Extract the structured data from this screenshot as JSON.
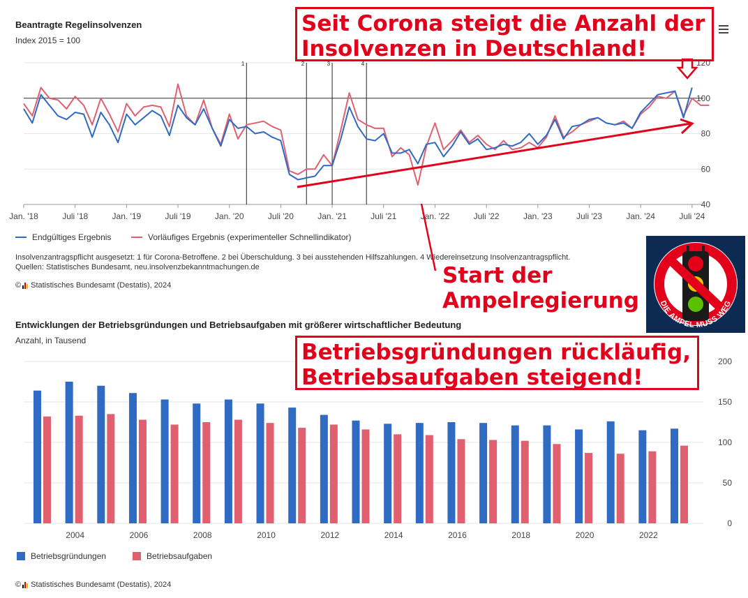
{
  "chart1": {
    "title": "Beantragte Regelinsolvenzen",
    "subtitle": "Index 2015 = 100",
    "legend": [
      "Endgültiges Ergebnis",
      "Vorläufiges Ergebnis (experimenteller Schnellindikator)"
    ],
    "footnote1": "Insolvenzantragspflicht ausgesetzt: 1 für Corona-Betroffene. 2 bei Überschuldung. 3 bei ausstehenden Hilfszahlungen. 4 Wiedereinsetzung Insolvenzantragspflicht.",
    "footnote2": "Quellen: Statistisches Bundesamt, neu.insolvenzbekanntmachungen.de",
    "source": "Statistisches Bundesamt (Destatis), 2024"
  },
  "chart2": {
    "title": "Entwicklungen der Betriebsgründungen und Betriebsaufgaben mit größerer wirtschaftlicher Bedeutung",
    "subtitle": "Anzahl, in Tausend",
    "legend": [
      "Betriebsgründungen",
      "Betriebsaufgaben"
    ],
    "source": "Statistisches Bundesamt (Destatis), 2024"
  },
  "annotations": {
    "top": "Seit Corona steigt die Anzahl der Insolvenzen in Deutschland!",
    "middle_line1": "Start der",
    "middle_line2": "Ampelregierung",
    "bottom_line1": "Betriebsgründungen rückläufig,",
    "bottom_line2": "Betriebsaufgaben steigend!",
    "badge": "DIE AMPEL MUSS WEG"
  },
  "colors": {
    "blue": "#2f6ac3",
    "red": "#e06070",
    "annotation_red": "#e3001b",
    "badge_bg": "#0d2a52"
  },
  "icons": {
    "menu": "hamburger-menu-icon",
    "copyright": "copyright-icon",
    "destatis": "destatis-logo-icon"
  },
  "chart_data": [
    {
      "type": "line",
      "title": "Beantragte Regelinsolvenzen",
      "ylabel": "Index 2015 = 100",
      "ylim": [
        40,
        120
      ],
      "yticks": [
        40,
        60,
        80,
        100,
        120
      ],
      "x_start": "2018-01",
      "x_ticks": [
        "Jan. '18",
        "Juli '18",
        "Jan. '19",
        "Juli '19",
        "Jan. '20",
        "Juli '20",
        "Jan. '21",
        "Juli '21",
        "Jan. '22",
        "Juli '22",
        "Jan. '23",
        "Juli '23",
        "Jan. '24",
        "Juli '24"
      ],
      "reference_line": 100,
      "event_markers": [
        {
          "label": "1",
          "date": "2020-03"
        },
        {
          "label": "2",
          "date": "2020-10"
        },
        {
          "label": "3",
          "date": "2021-01"
        },
        {
          "label": "4",
          "date": "2021-05"
        }
      ],
      "series": [
        {
          "name": "Endgültiges Ergebnis",
          "color": "#2f6ac3",
          "values": [
            94,
            86,
            102,
            96,
            90,
            88,
            92,
            91,
            78,
            92,
            85,
            75,
            91,
            85,
            89,
            93,
            90,
            79,
            96,
            89,
            85,
            94,
            83,
            73,
            88,
            83,
            84,
            80,
            81,
            78,
            76,
            57,
            54,
            55,
            56,
            62,
            62,
            77,
            95,
            84,
            77,
            76,
            80,
            69,
            69,
            71,
            63,
            74,
            75,
            67,
            73,
            81,
            74,
            77,
            71,
            72,
            74,
            73,
            75,
            80,
            74,
            79,
            88,
            77,
            84,
            85,
            88,
            89,
            86,
            85,
            86,
            83,
            92,
            97,
            102,
            103,
            104,
            89,
            106
          ]
        },
        {
          "name": "Vorläufiges Ergebnis (experimenteller Schnellindikator)",
          "color": "#e06070",
          "values": [
            97,
            90,
            106,
            100,
            99,
            94,
            101,
            96,
            85,
            100,
            91,
            81,
            97,
            90,
            95,
            96,
            95,
            84,
            108,
            90,
            85,
            99,
            83,
            74,
            91,
            77,
            85,
            86,
            87,
            84,
            82,
            59,
            57,
            60,
            60,
            68,
            62,
            82,
            103,
            88,
            85,
            83,
            83,
            67,
            72,
            68,
            51,
            73,
            86,
            71,
            76,
            82,
            75,
            79,
            74,
            71,
            76,
            71,
            72,
            75,
            72,
            78,
            90,
            78,
            81,
            85,
            87,
            89,
            86,
            85,
            87,
            83,
            91,
            95,
            101,
            100,
            104,
            90,
            100,
            96,
            96
          ]
        }
      ]
    },
    {
      "type": "bar",
      "title": "Entwicklungen der Betriebsgründungen und Betriebsaufgaben mit größerer wirtschaftlicher Bedeutung",
      "ylabel": "Anzahl, in Tausend",
      "ylim": [
        0,
        200
      ],
      "yticks": [
        0,
        50,
        100,
        150,
        200
      ],
      "categories": [
        2003,
        2004,
        2005,
        2006,
        2007,
        2008,
        2009,
        2010,
        2011,
        2012,
        2013,
        2014,
        2015,
        2016,
        2017,
        2018,
        2019,
        2020,
        2021,
        2022,
        2023
      ],
      "x_tick_labels": [
        "2004",
        "2006",
        "2008",
        "2010",
        "2012",
        "2014",
        "2016",
        "2018",
        "2020",
        "2022"
      ],
      "series": [
        {
          "name": "Betriebsgründungen",
          "color": "#2f6ac3",
          "values": [
            164,
            175,
            170,
            161,
            153,
            148,
            153,
            148,
            143,
            134,
            127,
            123,
            124,
            125,
            124,
            121,
            121,
            116,
            126,
            115,
            117
          ]
        },
        {
          "name": "Betriebsaufgaben",
          "color": "#e06070",
          "values": [
            132,
            133,
            135,
            128,
            122,
            125,
            128,
            124,
            118,
            122,
            116,
            110,
            109,
            104,
            103,
            102,
            98,
            87,
            86,
            89,
            96
          ]
        }
      ]
    }
  ]
}
